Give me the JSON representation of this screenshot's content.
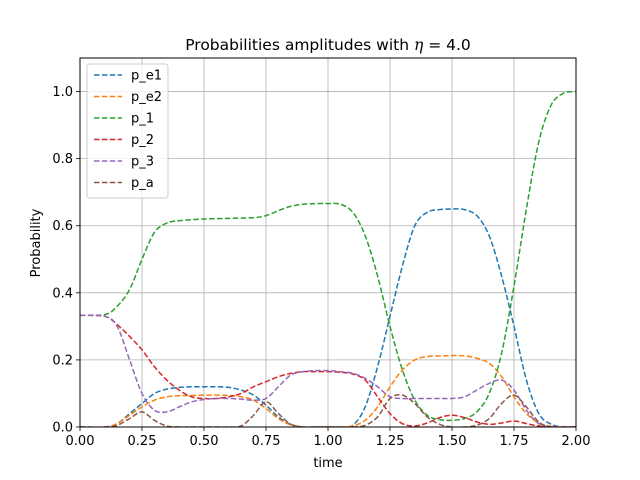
{
  "chart_data": {
    "type": "line",
    "title_prefix": "Probabilities amplitudes with ",
    "title_symbol": "η",
    "title_suffix": " = 4.0",
    "xlabel": "time",
    "ylabel": "Probability",
    "xlim": [
      0.0,
      2.0
    ],
    "ylim": [
      0.0,
      1.1
    ],
    "xticks": [
      0.0,
      0.25,
      0.5,
      0.75,
      1.0,
      1.25,
      1.5,
      1.75,
      2.0
    ],
    "xtick_labels": [
      "0.00",
      "0.25",
      "0.50",
      "0.75",
      "1.00",
      "1.25",
      "1.50",
      "1.75",
      "2.00"
    ],
    "yticks": [
      0.0,
      0.2,
      0.4,
      0.6,
      0.8,
      1.0
    ],
    "ytick_labels": [
      "0.0",
      "0.2",
      "0.4",
      "0.6",
      "0.8",
      "1.0"
    ],
    "grid": true,
    "legend_position": "top-left",
    "line_style": "dashed",
    "series": [
      {
        "name": "p_e1",
        "color": "#1f77b4",
        "x": [
          0,
          0.1,
          0.15,
          0.2,
          0.25,
          0.3,
          0.35,
          0.4,
          0.45,
          0.5,
          0.55,
          0.6,
          0.65,
          0.7,
          0.75,
          0.8,
          0.85,
          0.9,
          0.95,
          1.0,
          1.05,
          1.1,
          1.15,
          1.2,
          1.25,
          1.3,
          1.35,
          1.4,
          1.45,
          1.5,
          1.55,
          1.6,
          1.65,
          1.7,
          1.75,
          1.8,
          1.85,
          1.9,
          1.95,
          2.0
        ],
        "y": [
          0,
          0.0,
          0.01,
          0.04,
          0.07,
          0.1,
          0.113,
          0.118,
          0.12,
          0.12,
          0.12,
          0.118,
          0.11,
          0.095,
          0.065,
          0.03,
          0.008,
          0.0,
          0.0,
          0.0,
          0.0,
          0.005,
          0.06,
          0.18,
          0.33,
          0.48,
          0.6,
          0.64,
          0.648,
          0.65,
          0.648,
          0.63,
          0.57,
          0.45,
          0.3,
          0.14,
          0.04,
          0.008,
          0.0,
          0.0
        ]
      },
      {
        "name": "p_e2",
        "color": "#ff7f0e",
        "x": [
          0,
          0.1,
          0.15,
          0.2,
          0.25,
          0.3,
          0.35,
          0.4,
          0.45,
          0.5,
          0.55,
          0.6,
          0.65,
          0.7,
          0.75,
          0.8,
          0.85,
          0.9,
          0.95,
          1.0,
          1.05,
          1.1,
          1.15,
          1.2,
          1.25,
          1.3,
          1.35,
          1.4,
          1.45,
          1.5,
          1.55,
          1.6,
          1.65,
          1.7,
          1.75,
          1.8,
          1.85,
          1.9,
          1.95,
          2.0
        ],
        "y": [
          0,
          0.0,
          0.01,
          0.035,
          0.06,
          0.08,
          0.09,
          0.093,
          0.094,
          0.095,
          0.095,
          0.094,
          0.09,
          0.08,
          0.055,
          0.025,
          0.006,
          0.0,
          0.0,
          0.0,
          0.0,
          0.003,
          0.02,
          0.06,
          0.12,
          0.17,
          0.2,
          0.21,
          0.212,
          0.213,
          0.212,
          0.205,
          0.19,
          0.15,
          0.09,
          0.04,
          0.012,
          0.002,
          0.0,
          0.0
        ]
      },
      {
        "name": "p_1",
        "color": "#2ca02c",
        "x": [
          0,
          0.1,
          0.15,
          0.2,
          0.25,
          0.3,
          0.35,
          0.4,
          0.5,
          0.6,
          0.7,
          0.75,
          0.8,
          0.85,
          0.9,
          0.95,
          1.0,
          1.05,
          1.1,
          1.15,
          1.2,
          1.25,
          1.3,
          1.35,
          1.4,
          1.45,
          1.5,
          1.55,
          1.6,
          1.65,
          1.7,
          1.75,
          1.8,
          1.85,
          1.9,
          1.95,
          2.0
        ],
        "y": [
          0.333,
          0.335,
          0.36,
          0.41,
          0.5,
          0.58,
          0.608,
          0.615,
          0.62,
          0.622,
          0.624,
          0.63,
          0.645,
          0.658,
          0.664,
          0.666,
          0.666,
          0.664,
          0.64,
          0.57,
          0.45,
          0.3,
          0.17,
          0.08,
          0.035,
          0.022,
          0.02,
          0.025,
          0.045,
          0.1,
          0.22,
          0.42,
          0.65,
          0.85,
          0.96,
          0.995,
          1.0
        ]
      },
      {
        "name": "p_2",
        "color": "#d62728",
        "x": [
          0,
          0.1,
          0.15,
          0.2,
          0.25,
          0.3,
          0.35,
          0.4,
          0.45,
          0.5,
          0.55,
          0.6,
          0.65,
          0.7,
          0.75,
          0.8,
          0.85,
          0.9,
          0.95,
          1.0,
          1.05,
          1.1,
          1.15,
          1.2,
          1.25,
          1.3,
          1.35,
          1.4,
          1.45,
          1.5,
          1.55,
          1.6,
          1.65,
          1.7,
          1.75,
          1.8,
          1.85,
          1.9,
          2.0
        ],
        "y": [
          0.333,
          0.33,
          0.305,
          0.27,
          0.23,
          0.18,
          0.14,
          0.11,
          0.09,
          0.085,
          0.085,
          0.09,
          0.1,
          0.12,
          0.135,
          0.15,
          0.16,
          0.165,
          0.165,
          0.165,
          0.163,
          0.158,
          0.14,
          0.09,
          0.04,
          0.01,
          0.003,
          0.012,
          0.028,
          0.035,
          0.028,
          0.015,
          0.008,
          0.012,
          0.018,
          0.01,
          0.003,
          0.0,
          0.0
        ]
      },
      {
        "name": "p_3",
        "color": "#9467bd",
        "x": [
          0,
          0.1,
          0.15,
          0.2,
          0.25,
          0.3,
          0.35,
          0.4,
          0.45,
          0.5,
          0.55,
          0.6,
          0.65,
          0.7,
          0.75,
          0.8,
          0.85,
          0.9,
          0.95,
          1.0,
          1.05,
          1.1,
          1.15,
          1.2,
          1.25,
          1.3,
          1.35,
          1.4,
          1.45,
          1.5,
          1.55,
          1.6,
          1.65,
          1.7,
          1.75,
          1.8,
          1.85,
          1.9,
          2.0
        ],
        "y": [
          0.333,
          0.33,
          0.3,
          0.2,
          0.1,
          0.05,
          0.045,
          0.06,
          0.075,
          0.082,
          0.085,
          0.085,
          0.083,
          0.08,
          0.085,
          0.12,
          0.155,
          0.165,
          0.168,
          0.168,
          0.165,
          0.16,
          0.145,
          0.12,
          0.09,
          0.085,
          0.085,
          0.085,
          0.085,
          0.085,
          0.09,
          0.11,
          0.13,
          0.14,
          0.11,
          0.05,
          0.01,
          0.0,
          0.0
        ]
      },
      {
        "name": "p_a",
        "color": "#8c564b",
        "x": [
          0,
          0.1,
          0.15,
          0.2,
          0.25,
          0.3,
          0.35,
          0.4,
          0.45,
          0.5,
          0.55,
          0.6,
          0.65,
          0.7,
          0.75,
          0.8,
          0.85,
          0.9,
          0.95,
          1.0,
          1.05,
          1.1,
          1.15,
          1.2,
          1.25,
          1.3,
          1.35,
          1.4,
          1.45,
          1.5,
          1.55,
          1.6,
          1.65,
          1.7,
          1.75,
          1.8,
          1.85,
          1.9,
          2.0
        ],
        "y": [
          0,
          0.0,
          0.005,
          0.025,
          0.045,
          0.02,
          0.003,
          0.0,
          0.0,
          0.0,
          0.0,
          0.0,
          0.003,
          0.035,
          0.075,
          0.04,
          0.008,
          0.0,
          0.0,
          0.0,
          0.0,
          0.0,
          0.005,
          0.03,
          0.085,
          0.095,
          0.07,
          0.03,
          0.008,
          0.0,
          0.0,
          0.005,
          0.025,
          0.07,
          0.095,
          0.06,
          0.015,
          0.0,
          0.0
        ]
      }
    ]
  }
}
